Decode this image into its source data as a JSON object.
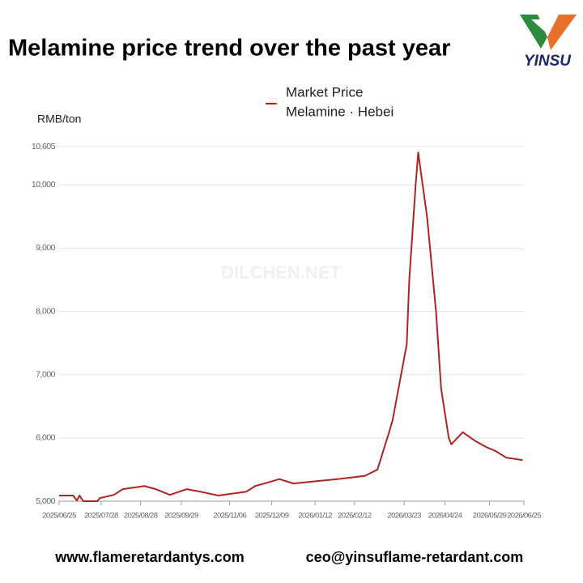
{
  "header": {
    "title": "Melamine price trend over the past year",
    "logo_text": "YINSU"
  },
  "chart_data": {
    "type": "line",
    "y_label": "RMB/ton",
    "watermark": "DILCHEN.NET",
    "legend_subtitle": "Melamine · Hebei",
    "x": [
      "2025/06/25",
      "2025/07/06",
      "2025/07/09",
      "2025/07/11",
      "2025/07/14",
      "2025/07/25",
      "2025/07/27",
      "2025/08/07",
      "2025/08/14",
      "2025/08/31",
      "2025/09/09",
      "2025/09/20",
      "2025/10/03",
      "2025/10/14",
      "2025/10/28",
      "2025/11/19",
      "2025/11/26",
      "2025/12/05",
      "2025/12/15",
      "2025/12/26",
      "2026/01/30",
      "2026/02/20",
      "2026/03/02",
      "2026/03/11",
      "2026/03/14",
      "2026/03/25",
      "2026/03/27",
      "2026/04/01",
      "2026/04/03",
      "2026/04/10",
      "2026/04/17",
      "2026/04/21",
      "2026/04/27",
      "2026/04/29",
      "2026/05/08",
      "2026/05/18",
      "2026/05/26",
      "2026/06/03",
      "2026/06/11",
      "2026/06/24"
    ],
    "series": [
      {
        "name": "Market Price",
        "color": "#b22222",
        "values": [
          5090,
          5090,
          5010,
          5090,
          5000,
          5000,
          5050,
          5100,
          5190,
          5240,
          5190,
          5100,
          5190,
          5150,
          5090,
          5150,
          5240,
          5290,
          5350,
          5280,
          5350,
          5400,
          5500,
          6080,
          6290,
          7480,
          8500,
          10000,
          10510,
          9490,
          8000,
          6780,
          6000,
          5900,
          6090,
          5950,
          5860,
          5790,
          5690,
          5650
        ]
      }
    ],
    "xlim": [
      "2025/06/25",
      "2026/06/25"
    ],
    "xticks": [
      "2025/06/25",
      "2025/07/28",
      "2025/08/28",
      "2025/09/29",
      "2025/11/06",
      "2025/12/09",
      "2026/01/12",
      "2026/02/12",
      "2026/03/23",
      "2026/04/24",
      "2026/05/29",
      "2026/06/25"
    ],
    "ylim": [
      5000,
      10605
    ],
    "yticks": [
      {
        "value": 5000,
        "label": "5,000"
      },
      {
        "value": 6000,
        "label": "6,000"
      },
      {
        "value": 7000,
        "label": "7,000"
      },
      {
        "value": 8000,
        "label": "8,000"
      },
      {
        "value": 9000,
        "label": "9,000"
      },
      {
        "value": 10000,
        "label": "10,000"
      },
      {
        "value": 10605,
        "label": "10,605"
      }
    ],
    "grid": true
  },
  "footer": {
    "website": "www.flameretardantys.com",
    "email": "ceo@yinsuflame-retardant.com"
  }
}
